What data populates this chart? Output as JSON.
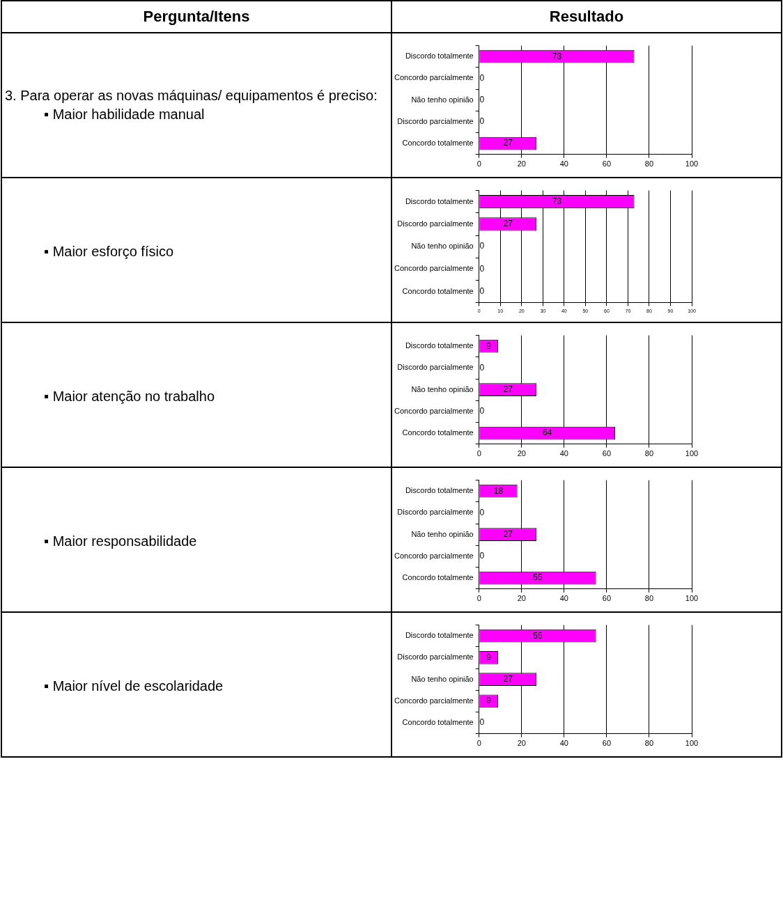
{
  "chart_data": [
    {
      "type": "other",
      "annotations": [
        "Pergunta/Itens",
        "Resultado"
      ]
    },
    {
      "type": "other",
      "annotations": [
        "3. Para operar as novas máquinas/ equipamentos é preciso:",
        "▪ Maior habilidade manual"
      ]
    },
    {
      "type": "bar",
      "orientation": "horizontal",
      "categories": [
        "Discordo totalmente",
        "Concordo parcialmente",
        "Não tenho opinião",
        "Discordo parcialmente",
        "Concordo totalmente"
      ],
      "values": [
        73,
        0,
        0,
        0,
        27
      ],
      "color": "#ff00ff",
      "xlim": [
        0,
        100
      ],
      "xticks": [
        0,
        20,
        40,
        60,
        80,
        100
      ],
      "grid": "x",
      "data_labels": true
    },
    {
      "type": "other",
      "annotations": [
        "▪ Maior esforço físico"
      ]
    },
    {
      "type": "bar",
      "orientation": "horizontal",
      "categories": [
        "Discordo totalmente",
        "Discordo parcialmente",
        "Não tenho opinião",
        "Concordo parcialmente",
        "Concordo totalmente"
      ],
      "values": [
        73,
        27,
        0,
        0,
        0
      ],
      "color": "#ff00ff",
      "xlim": [
        0,
        100
      ],
      "xticks": [
        0,
        10,
        20,
        30,
        40,
        50,
        60,
        70,
        80,
        90,
        100
      ],
      "grid": "x",
      "data_labels": true
    },
    {
      "type": "other",
      "annotations": [
        "▪ Maior atenção no trabalho"
      ]
    },
    {
      "type": "bar",
      "orientation": "horizontal",
      "categories": [
        "Discordo totalmente",
        "Discordo parcialmente",
        "Não tenho opinião",
        "Concordo parcialmente",
        "Concordo totalmente"
      ],
      "values": [
        9,
        0,
        27,
        0,
        64
      ],
      "color": "#ff00ff",
      "xlim": [
        0,
        100
      ],
      "xticks": [
        0,
        20,
        40,
        60,
        80,
        100
      ],
      "grid": "x",
      "data_labels": true
    },
    {
      "type": "other",
      "annotations": [
        "▪ Maior responsabilidade"
      ]
    },
    {
      "type": "bar",
      "orientation": "horizontal",
      "categories": [
        "Discordo totalmente",
        "Discordo parcialmente",
        "Não tenho opinião",
        "Concordo parcialmente",
        "Concordo totalmente"
      ],
      "values": [
        18,
        0,
        27,
        0,
        55
      ],
      "color": "#ff00ff",
      "xlim": [
        0,
        100
      ],
      "xticks": [
        0,
        20,
        40,
        60,
        80,
        100
      ],
      "grid": "x",
      "data_labels": true
    },
    {
      "type": "other",
      "annotations": [
        "▪ Maior nível de escolaridade"
      ]
    },
    {
      "type": "bar",
      "orientation": "horizontal",
      "categories": [
        "Discordo totalmente",
        "Discordo parcialmente",
        "Não tenho opinião",
        "Concordo parcialmente",
        "Concordo totalmente"
      ],
      "values": [
        55,
        9,
        27,
        9,
        0
      ],
      "color": "#ff00ff",
      "xlim": [
        0,
        100
      ],
      "xticks": [
        0,
        20,
        40,
        60,
        80,
        100
      ],
      "grid": "x",
      "data_labels": true
    }
  ]
}
